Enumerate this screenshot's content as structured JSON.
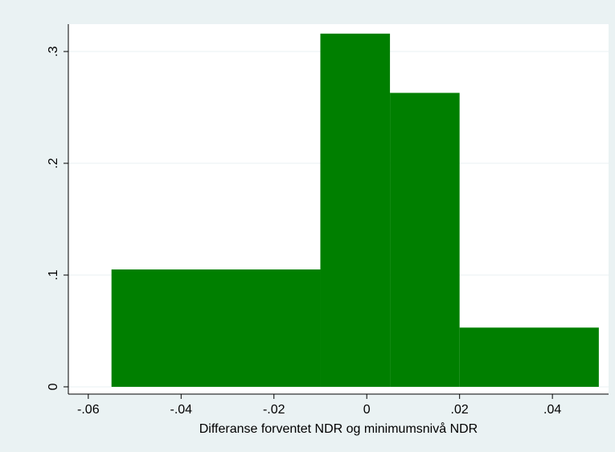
{
  "chart_data": {
    "type": "histogram",
    "xlabel": "Differanse forventet NDR og minimumsnivå NDR",
    "bins": [
      -0.055,
      -0.01,
      0.005,
      0.02,
      0.05
    ],
    "values": [
      0.105,
      0.316,
      0.263,
      0.053
    ],
    "color": "#007f00",
    "xlim": [
      -0.0643,
      0.0521
    ],
    "ylim": [
      -0.0065,
      0.3245
    ],
    "xticks": [
      {
        "value": -0.06,
        "label": "-.06"
      },
      {
        "value": -0.04,
        "label": "-.04"
      },
      {
        "value": -0.02,
        "label": "-.02"
      },
      0,
      {
        "value": 0.02,
        "label": ".02"
      },
      {
        "value": 0.04,
        "label": ".04"
      }
    ],
    "yticks": [
      0,
      {
        "value": 0.1,
        "label": ".1"
      },
      {
        "value": 0.2,
        "label": ".2"
      },
      {
        "value": 0.3,
        "label": ".3"
      }
    ],
    "grid": true
  }
}
